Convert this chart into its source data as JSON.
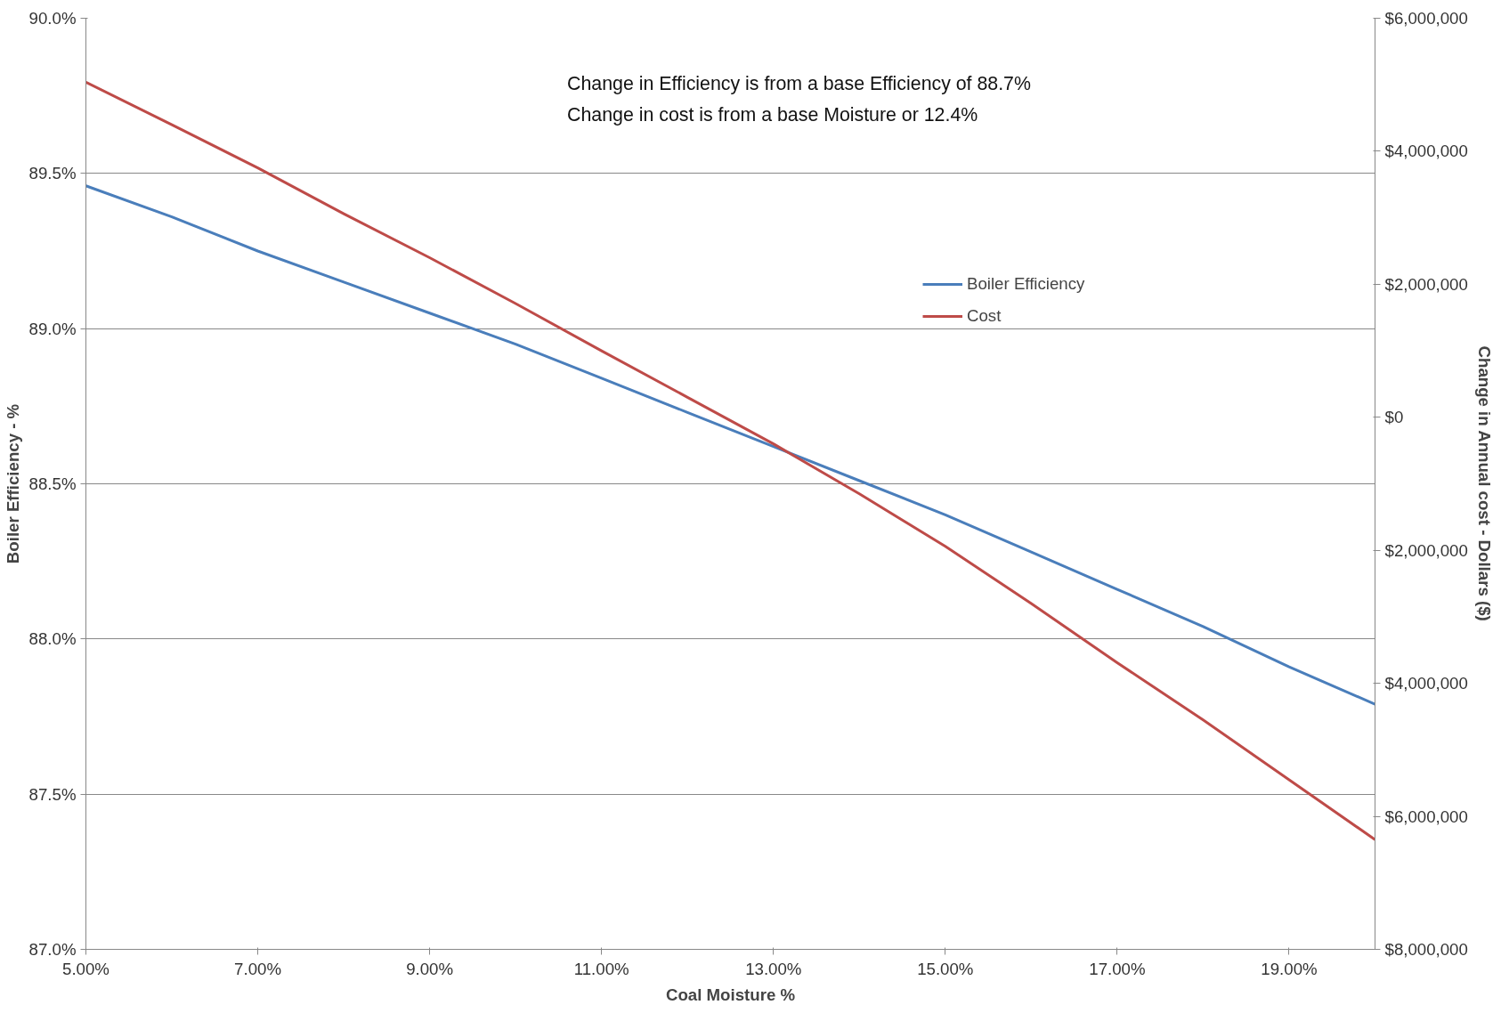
{
  "chart_data": {
    "type": "line",
    "xlabel": "Coal Moisture %",
    "ylabel": "Boiler Efficiency - %",
    "y2label": "Change in Annual cost - Dollars ($)",
    "x": [
      5,
      6,
      7,
      8,
      9,
      10,
      11,
      12,
      13,
      14,
      15,
      16,
      17,
      18,
      19,
      20
    ],
    "series": [
      {
        "name": "Boiler Efficiency",
        "color": "#4a7ebb",
        "values": [
          89.46,
          89.36,
          89.25,
          89.15,
          89.05,
          88.95,
          88.84,
          88.73,
          88.62,
          88.51,
          88.4,
          88.28,
          88.16,
          88.04,
          87.91,
          87.79
        ]
      },
      {
        "name": "Cost",
        "color": "#be4b48",
        "axis": "y2",
        "values": [
          5040000,
          4400000,
          3750000,
          3060000,
          2400000,
          1710000,
          1000000,
          300000,
          -400000,
          -1150000,
          -1940000,
          -2800000,
          -3690000,
          -4550000,
          -5450000,
          -6350000
        ]
      }
    ],
    "xlim": [
      5,
      20
    ],
    "xticks": [
      {
        "value": 5,
        "label": "5.00%"
      },
      {
        "value": 7,
        "label": "7.00%"
      },
      {
        "value": 9,
        "label": "9.00%"
      },
      {
        "value": 11,
        "label": "11.00%"
      },
      {
        "value": 13,
        "label": "13.00%"
      },
      {
        "value": 15,
        "label": "15.00%"
      },
      {
        "value": 17,
        "label": "17.00%"
      },
      {
        "value": 19,
        "label": "19.00%"
      }
    ],
    "ylim": [
      87,
      90
    ],
    "yticks": [
      {
        "value": 87,
        "label": "87.0%"
      },
      {
        "value": 87.5,
        "label": "87.5%"
      },
      {
        "value": 88,
        "label": "88.0%"
      },
      {
        "value": 88.5,
        "label": "88.5%"
      },
      {
        "value": 89,
        "label": "89.0%"
      },
      {
        "value": 89.5,
        "label": "89.5%"
      },
      {
        "value": 90,
        "label": "90.0%"
      }
    ],
    "y2lim": [
      -8000000,
      6000000
    ],
    "y2ticks": [
      {
        "value": -8000000,
        "label": "$8,000,000"
      },
      {
        "value": -6000000,
        "label": "$6,000,000"
      },
      {
        "value": -4000000,
        "label": "$4,000,000"
      },
      {
        "value": -2000000,
        "label": "$2,000,000"
      },
      {
        "value": 0,
        "label": "$0"
      },
      {
        "value": 2000000,
        "label": "$2,000,000"
      },
      {
        "value": 4000000,
        "label": "$4,000,000"
      },
      {
        "value": 6000000,
        "label": "$6,000,000"
      }
    ],
    "annotations": [
      "Change in Efficiency is from a base Efficiency of 88.7%",
      "Change in cost is from a base Moisture or 12.4%"
    ],
    "grid": "y",
    "legend": "top right",
    "marker": "none",
    "line_style": "solid"
  }
}
